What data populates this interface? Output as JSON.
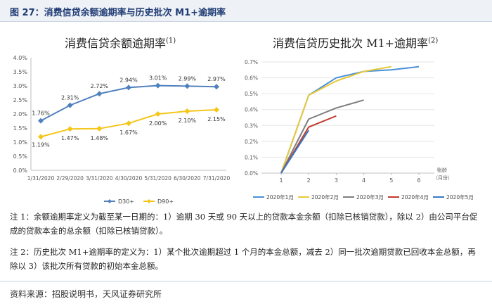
{
  "figure": {
    "title": "图 27：消费信贷余额逾期率与历史批次 M1+逾期率",
    "note1": "注 1：余额逾期率定义为截至某一日期的：1）逾期 30 天或 90 天以上的贷款本金余额（扣除已核销贷款），除以 2）由公司平台促成的贷款本金的总余额（扣除已核销贷款）。",
    "note2": "注 2：历史批次 M1+逾期率的定义为：1）某个批次逾期超过 1 个月的本金总额，减去 2）同一批次逾期贷款已回收本金总额，再除以 3）该批次所有贷款的初始本金总额。",
    "source": "资料来源：招股说明书，天风证券研究所"
  },
  "chart_data": [
    {
      "type": "line",
      "title": "消费信贷余额逾期率",
      "title_sup": "(1)",
      "categories": [
        "1/31/2020",
        "2/29/2020",
        "3/31/2020",
        "4/30/2020",
        "5/31/2020",
        "6/30/2020",
        "7/31/2020"
      ],
      "y_ticks": [
        "0.0%",
        "0.5%",
        "1.0%",
        "1.5%",
        "2.0%",
        "2.5%",
        "3.0%",
        "3.5%",
        "4.0%"
      ],
      "ylim": [
        0,
        4.0
      ],
      "series": [
        {
          "name": "D30+",
          "color": "#4f81bd",
          "marker": "diamond",
          "values": [
            1.76,
            2.31,
            2.72,
            2.94,
            3.01,
            2.99,
            2.97
          ],
          "labels": [
            "1.76%",
            "2.31%",
            "2.72%",
            "2.94%",
            "3.01%",
            "2.99%",
            "2.97%"
          ]
        },
        {
          "name": "D90+",
          "color": "#f5c518",
          "marker": "diamond",
          "values": [
            1.19,
            1.47,
            1.48,
            1.67,
            2.0,
            2.1,
            2.15
          ],
          "labels": [
            "1.19%",
            "1.47%",
            "1.48%",
            "1.67%",
            "2.00%",
            "2.10%",
            "2.15%"
          ]
        }
      ],
      "legend_position": "bottom",
      "grid": false
    },
    {
      "type": "line",
      "title": "消费信贷历史批次 M1+逾期率",
      "title_sup": "(2)",
      "x_ticks": [
        "1",
        "2",
        "3",
        "4",
        "5",
        "6"
      ],
      "x_unit_label": [
        "账龄",
        "（月份）"
      ],
      "y_ticks": [
        "0.0%",
        "0.1%",
        "0.2%",
        "0.3%",
        "0.4%",
        "0.5%",
        "0.6%",
        "0.7%"
      ],
      "xlim": [
        1,
        6
      ],
      "ylim": [
        0,
        0.7
      ],
      "series": [
        {
          "name": "2020年1月",
          "color": "#4a90d9",
          "x": [
            1,
            2,
            3,
            4,
            5,
            6
          ],
          "values": [
            0.0,
            0.49,
            0.6,
            0.64,
            0.65,
            0.67
          ]
        },
        {
          "name": "2020年2月",
          "color": "#e8c93a",
          "x": [
            1,
            2,
            3,
            4,
            5
          ],
          "values": [
            0.0,
            0.49,
            0.58,
            0.64,
            0.67
          ]
        },
        {
          "name": "2020年3月",
          "color": "#7f7f7f",
          "x": [
            1,
            2,
            3,
            4
          ],
          "values": [
            0.0,
            0.34,
            0.41,
            0.46
          ]
        },
        {
          "name": "2020年4月",
          "color": "#c0392b",
          "x": [
            1,
            2,
            3
          ],
          "values": [
            0.0,
            0.29,
            0.36
          ]
        },
        {
          "name": "2020年5月",
          "color": "#3a78c2",
          "x": [
            1,
            2
          ],
          "values": [
            0.0,
            0.27
          ]
        }
      ],
      "legend_position": "bottom",
      "grid": true
    }
  ]
}
